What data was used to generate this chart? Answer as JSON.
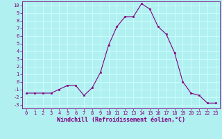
{
  "x": [
    0,
    1,
    2,
    3,
    4,
    5,
    6,
    7,
    8,
    9,
    10,
    11,
    12,
    13,
    14,
    15,
    16,
    17,
    18,
    19,
    20,
    21,
    22,
    23
  ],
  "y": [
    -1.5,
    -1.5,
    -1.5,
    -1.5,
    -1.0,
    -0.5,
    -0.5,
    -1.8,
    -0.8,
    1.2,
    4.8,
    7.2,
    8.5,
    8.5,
    10.2,
    9.5,
    7.2,
    6.2,
    3.8,
    0.0,
    -1.5,
    -1.8,
    -2.8,
    -2.8
  ],
  "line_color": "#800080",
  "marker_color": "#800080",
  "bg_color": "#b0f0f0",
  "grid_color": "#d0ffff",
  "xlabel": "Windchill (Refroidissement éolien,°C)",
  "xlabel_color": "#800080",
  "xlim": [
    -0.5,
    23.5
  ],
  "ylim": [
    -3.5,
    10.5
  ],
  "yticks": [
    -3,
    -2,
    -1,
    0,
    1,
    2,
    3,
    4,
    5,
    6,
    7,
    8,
    9,
    10
  ],
  "xticks": [
    0,
    1,
    2,
    3,
    4,
    5,
    6,
    7,
    8,
    9,
    10,
    11,
    12,
    13,
    14,
    15,
    16,
    17,
    18,
    19,
    20,
    21,
    22,
    23
  ],
  "tick_color": "#800080",
  "tick_fontsize": 5.0,
  "xlabel_fontsize": 6.0,
  "linewidth": 0.8,
  "markersize": 1.8
}
